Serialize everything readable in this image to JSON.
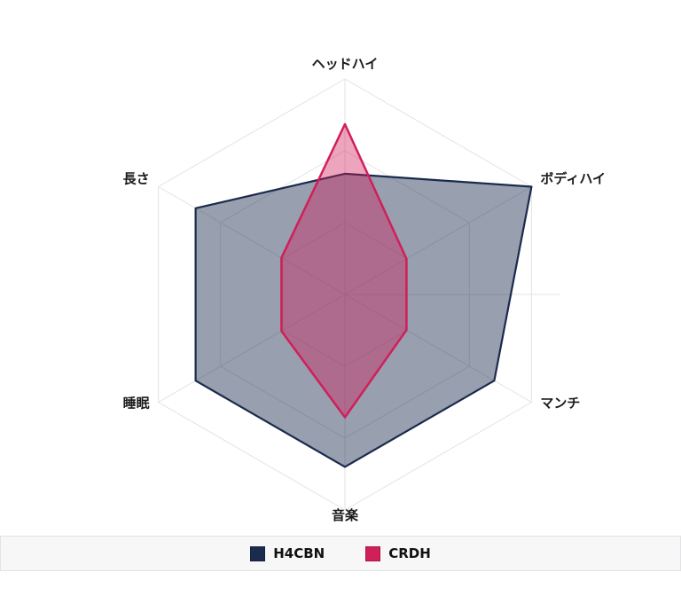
{
  "chart_data": {
    "type": "radar",
    "title": "",
    "categories": [
      "ヘッドハイ",
      "ボディハイ",
      "マンチ",
      "音楽",
      "睡眠",
      "長さ"
    ],
    "series": [
      {
        "name": "H4CBN",
        "color": "#1A2B4D",
        "values": [
          5.6,
          10,
          8,
          8,
          8,
          8
        ]
      },
      {
        "name": "CRDH",
        "color": "#D01F59",
        "values": [
          7.9,
          3.3,
          3.3,
          5.7,
          3.4,
          3.4
        ]
      }
    ],
    "scale": {
      "min": 0,
      "max": 10,
      "grid_rings": 3,
      "tick_labels_visible": false
    },
    "grid": {
      "shape": "polygon",
      "color": "#e3e3e3",
      "spokes": true,
      "radius_axis_visible": true
    },
    "legend": {
      "position": "bottom",
      "items": [
        {
          "label": "H4CBN",
          "color": "#1A2B4D"
        },
        {
          "label": "CRDH",
          "color": "#D01F59"
        }
      ]
    }
  }
}
